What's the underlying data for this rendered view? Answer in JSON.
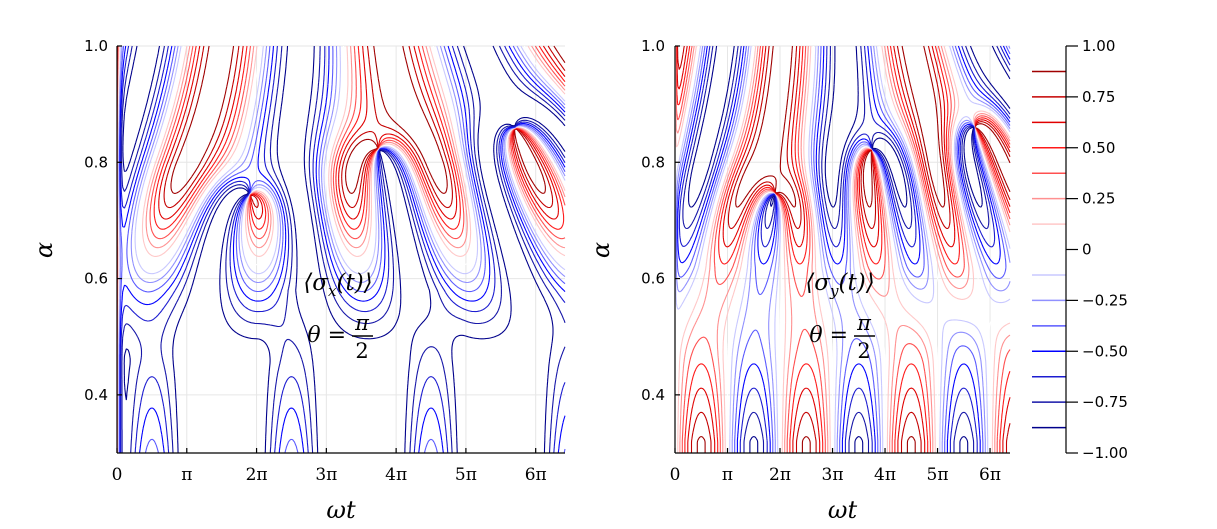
{
  "chart_data": [
    {
      "type": "contour",
      "id": "left",
      "quantity": "sigma_x",
      "xlabel": "ωt",
      "ylabel": "α",
      "xlim_over_pi": [
        0,
        6.42
      ],
      "ylim": [
        0.3,
        1.0
      ],
      "xticks": [
        "0",
        "π",
        "2π",
        "3π",
        "4π",
        "5π",
        "6π"
      ],
      "xtick_values_over_pi": [
        0,
        1,
        2,
        3,
        4,
        5,
        6
      ],
      "yticks": [
        "0.4",
        "0.6",
        "0.8",
        "1.0"
      ],
      "ytick_values": [
        0.4,
        0.6,
        0.8,
        1.0
      ],
      "grid": true,
      "annotation": {
        "prefix": "⟨σ",
        "sub": "x",
        "suffix": "(t)⟩",
        "theta_lhs": "θ =",
        "theta_num": "π",
        "theta_den": "2"
      },
      "singular_points_over_pi": [
        [
          1.9,
          0.745
        ],
        [
          3.75,
          0.822
        ],
        [
          5.7,
          0.86
        ]
      ]
    },
    {
      "type": "contour",
      "id": "right",
      "quantity": "sigma_y",
      "xlabel": "ωt",
      "ylabel": "α",
      "xlim_over_pi": [
        0,
        6.38
      ],
      "ylim": [
        0.3,
        1.0
      ],
      "xticks": [
        "0",
        "π",
        "2π",
        "3π",
        "4π",
        "5π",
        "6π"
      ],
      "xtick_values_over_pi": [
        0,
        1,
        2,
        3,
        4,
        5,
        6
      ],
      "yticks": [
        "0.4",
        "0.6",
        "0.8",
        "1.0"
      ],
      "ytick_values": [
        0.4,
        0.6,
        0.8,
        1.0
      ],
      "grid": true,
      "annotation": {
        "prefix": "⟨σ",
        "sub": "y",
        "suffix": "(t)⟩",
        "theta_lhs": "θ =",
        "theta_num": "π",
        "theta_den": "2"
      },
      "singular_points_over_pi": [
        [
          1.9,
          0.745
        ],
        [
          3.75,
          0.822
        ],
        [
          5.7,
          0.86
        ]
      ]
    }
  ],
  "colorbar": {
    "range": [
      -1.0,
      1.0
    ],
    "ticks": [
      "1.00",
      "0.75",
      "0.50",
      "0.25",
      "0",
      "−0.25",
      "−0.50",
      "−0.75",
      "−1.00"
    ],
    "tick_values": [
      1.0,
      0.75,
      0.5,
      0.25,
      0,
      -0.25,
      -0.5,
      -0.75,
      -1.0
    ],
    "levels": [
      0.875,
      0.75,
      0.625,
      0.5,
      0.375,
      0.25,
      0.125,
      0,
      -0.125,
      -0.25,
      -0.375,
      -0.5,
      -0.625,
      -0.75,
      -0.875
    ],
    "colors": [
      "#a00000",
      "#c40000",
      "#e00000",
      "#ff1a1a",
      "#ff5050",
      "#ff9090",
      "#ffc8c8",
      "#ffffff",
      "#c8c8ff",
      "#9090ff",
      "#5a5aff",
      "#0000ff",
      "#1c1cd0",
      "#1616a8",
      "#00008b"
    ]
  }
}
